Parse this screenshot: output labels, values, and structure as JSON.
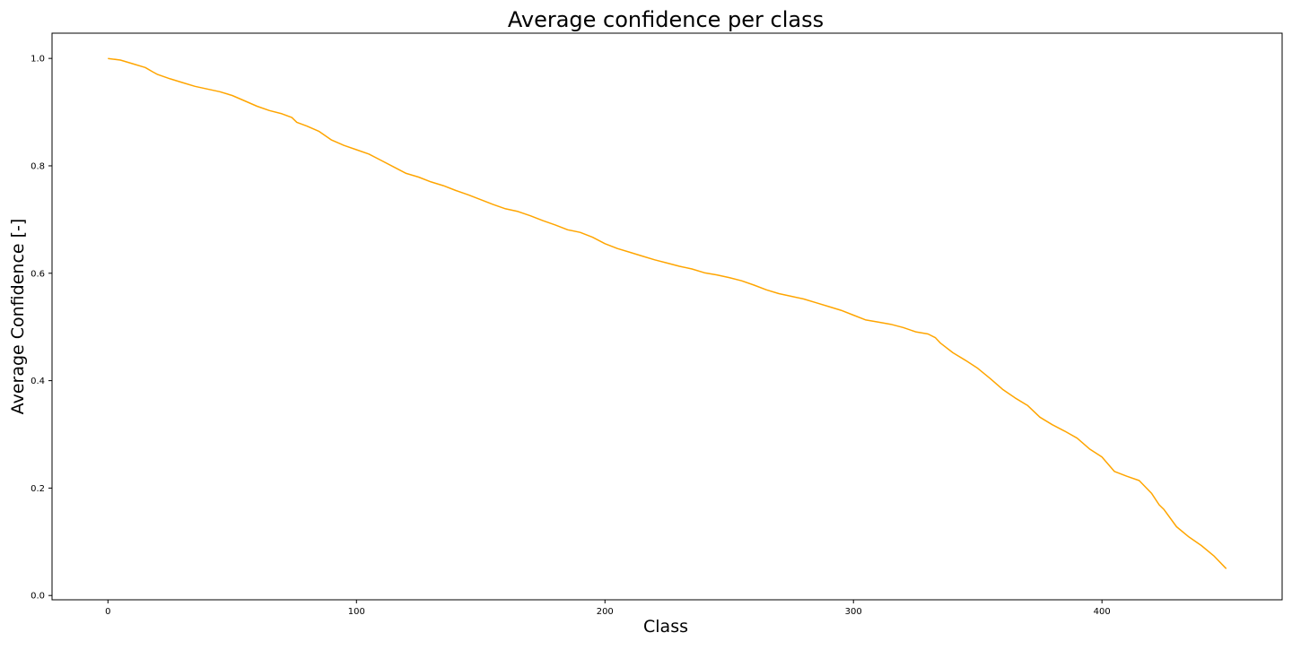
{
  "chart_data": {
    "type": "line",
    "title": "Average confidence per class",
    "xlabel": "Class",
    "ylabel": "Average Confidence [-]",
    "xlim": [
      -22.5,
      472.5
    ],
    "ylim": [
      -0.008,
      1.047
    ],
    "xticks": [
      0,
      100,
      200,
      300,
      400
    ],
    "xtick_labels": [
      "0",
      "100",
      "200",
      "300",
      "400"
    ],
    "yticks": [
      0.0,
      0.2,
      0.4,
      0.6,
      0.8,
      1.0
    ],
    "ytick_labels": [
      "0.0",
      "0.2",
      "0.4",
      "0.6",
      "0.8",
      "1.0"
    ],
    "grid": false,
    "legend": "none",
    "series": [
      {
        "color": "#FFA500",
        "x": [
          0,
          5,
          10,
          15,
          18,
          20,
          25,
          30,
          35,
          40,
          45,
          50,
          55,
          60,
          65,
          70,
          74,
          76,
          80,
          85,
          90,
          95,
          100,
          105,
          110,
          115,
          120,
          125,
          130,
          135,
          140,
          145,
          150,
          155,
          160,
          165,
          170,
          175,
          180,
          185,
          190,
          195,
          200,
          205,
          210,
          215,
          220,
          225,
          230,
          235,
          240,
          245,
          250,
          255,
          260,
          265,
          270,
          275,
          280,
          285,
          290,
          295,
          300,
          305,
          310,
          315,
          320,
          325,
          330,
          333,
          335,
          340,
          345,
          350,
          355,
          360,
          365,
          370,
          375,
          380,
          385,
          390,
          395,
          400,
          405,
          410,
          415,
          420,
          423,
          425,
          430,
          435,
          440,
          445,
          450
        ],
        "y": [
          1.0,
          0.997,
          0.99,
          0.983,
          0.975,
          0.97,
          0.962,
          0.955,
          0.948,
          0.943,
          0.938,
          0.931,
          0.921,
          0.911,
          0.903,
          0.897,
          0.89,
          0.881,
          0.874,
          0.864,
          0.848,
          0.838,
          0.83,
          0.822,
          0.81,
          0.798,
          0.786,
          0.779,
          0.77,
          0.763,
          0.754,
          0.746,
          0.737,
          0.728,
          0.72,
          0.715,
          0.707,
          0.698,
          0.69,
          0.681,
          0.676,
          0.667,
          0.655,
          0.646,
          0.639,
          0.632,
          0.625,
          0.619,
          0.613,
          0.608,
          0.601,
          0.597,
          0.592,
          0.586,
          0.578,
          0.569,
          0.562,
          0.557,
          0.552,
          0.545,
          0.538,
          0.531,
          0.522,
          0.513,
          0.509,
          0.505,
          0.499,
          0.491,
          0.487,
          0.48,
          0.47,
          0.452,
          0.438,
          0.423,
          0.404,
          0.384,
          0.368,
          0.354,
          0.332,
          0.318,
          0.306,
          0.293,
          0.273,
          0.258,
          0.231,
          0.222,
          0.214,
          0.19,
          0.169,
          0.16,
          0.128,
          0.109,
          0.093,
          0.074,
          0.05
        ]
      }
    ]
  }
}
